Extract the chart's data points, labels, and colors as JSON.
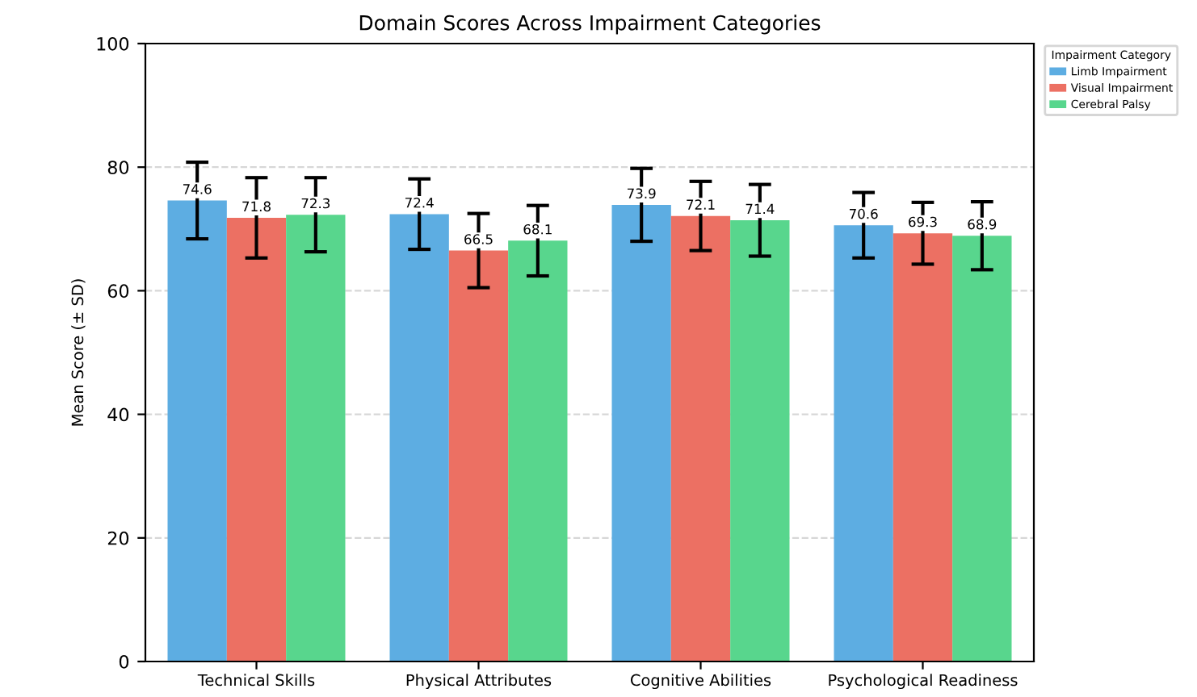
{
  "chart_data": {
    "type": "bar",
    "title": "Domain Scores Across Impairment Categories",
    "ylabel": "Mean Score (± SD)",
    "legend_title": "Impairment Category",
    "categories": [
      "Technical Skills",
      "Physical Attributes",
      "Cognitive Abilities",
      "Psychological Readiness"
    ],
    "series": [
      {
        "name": "Limb Impairment",
        "color": "#5dade2",
        "values": [
          74.6,
          72.4,
          73.9,
          70.6
        ],
        "errors": [
          6.2,
          5.7,
          5.9,
          5.3
        ]
      },
      {
        "name": "Visual Impairment",
        "color": "#ec7063",
        "values": [
          71.8,
          66.5,
          72.1,
          69.3
        ],
        "errors": [
          6.5,
          6.0,
          5.6,
          5.0
        ]
      },
      {
        "name": "Cerebral Palsy",
        "color": "#58d68d",
        "values": [
          72.3,
          68.1,
          71.4,
          68.9
        ],
        "errors": [
          6.0,
          5.7,
          5.8,
          5.5
        ]
      }
    ],
    "ylim": [
      0,
      100
    ],
    "yticks": [
      0,
      20,
      40,
      60,
      80,
      100
    ],
    "grid": "y",
    "legend": "top right",
    "data_labels": true
  }
}
